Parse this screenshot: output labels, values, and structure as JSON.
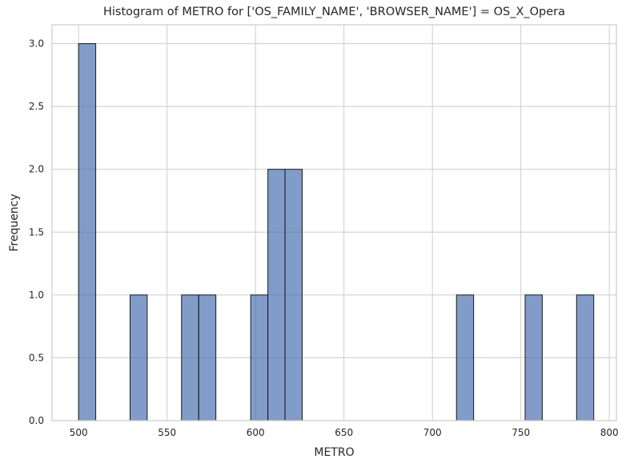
{
  "chart_data": {
    "type": "bar",
    "title": "Histogram of METRO for ['OS_FAMILY_NAME', 'BROWSER_NAME'] = OS_X_Opera",
    "xlabel": "METRO",
    "ylabel": "Frequency",
    "xlim": [
      485,
      804
    ],
    "ylim": [
      0,
      3.15
    ],
    "xticks": [
      500,
      550,
      600,
      650,
      700,
      750,
      800
    ],
    "yticks": [
      0.0,
      0.5,
      1.0,
      1.5,
      2.0,
      2.5,
      3.0
    ],
    "xtick_labels": [
      "500",
      "550",
      "600",
      "650",
      "700",
      "750",
      "800"
    ],
    "ytick_labels": [
      "0.0",
      "0.5",
      "1.0",
      "1.5",
      "2.0",
      "2.5",
      "3.0"
    ],
    "grid": true,
    "bins": [
      {
        "start": 500.0,
        "end": 509.7,
        "count": 3
      },
      {
        "start": 529.1,
        "end": 538.8,
        "count": 1
      },
      {
        "start": 558.2,
        "end": 567.9,
        "count": 1
      },
      {
        "start": 567.9,
        "end": 577.6,
        "count": 1
      },
      {
        "start": 597.3,
        "end": 607.0,
        "count": 1
      },
      {
        "start": 607.0,
        "end": 616.7,
        "count": 2
      },
      {
        "start": 616.7,
        "end": 626.4,
        "count": 2
      },
      {
        "start": 713.6,
        "end": 723.3,
        "count": 1
      },
      {
        "start": 752.4,
        "end": 762.1,
        "count": 1
      },
      {
        "start": 781.5,
        "end": 791.2,
        "count": 1
      }
    ],
    "colors": {
      "bar": "#4c72b0",
      "edge": "#1a1a1a",
      "grid": "#cccccc"
    }
  }
}
